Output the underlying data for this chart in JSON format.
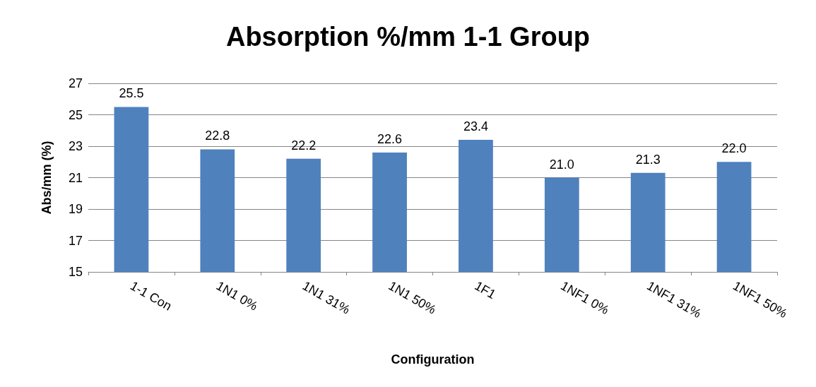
{
  "chart_data": {
    "type": "bar",
    "title": "Absorption %/mm 1-1 Group",
    "xlabel": "Configuration",
    "ylabel": "Abs/mm (%)",
    "categories": [
      "1-1 Con",
      "1N1 0%",
      "1N1 31%",
      "1N1 50%",
      "1F1",
      "1NF1 0%",
      "1NF1 31%",
      "1NF1 50%"
    ],
    "values": [
      25.5,
      22.8,
      22.2,
      22.6,
      23.4,
      21.0,
      21.3,
      22.0
    ],
    "value_labels": [
      "25.5",
      "22.8",
      "22.2",
      "22.6",
      "23.4",
      "21.0",
      "21.3",
      "22.0"
    ],
    "color": "#4f81bd",
    "ylim": [
      15,
      27
    ],
    "yticks": [
      15,
      17,
      19,
      21,
      23,
      25,
      27
    ],
    "grid": "y"
  }
}
